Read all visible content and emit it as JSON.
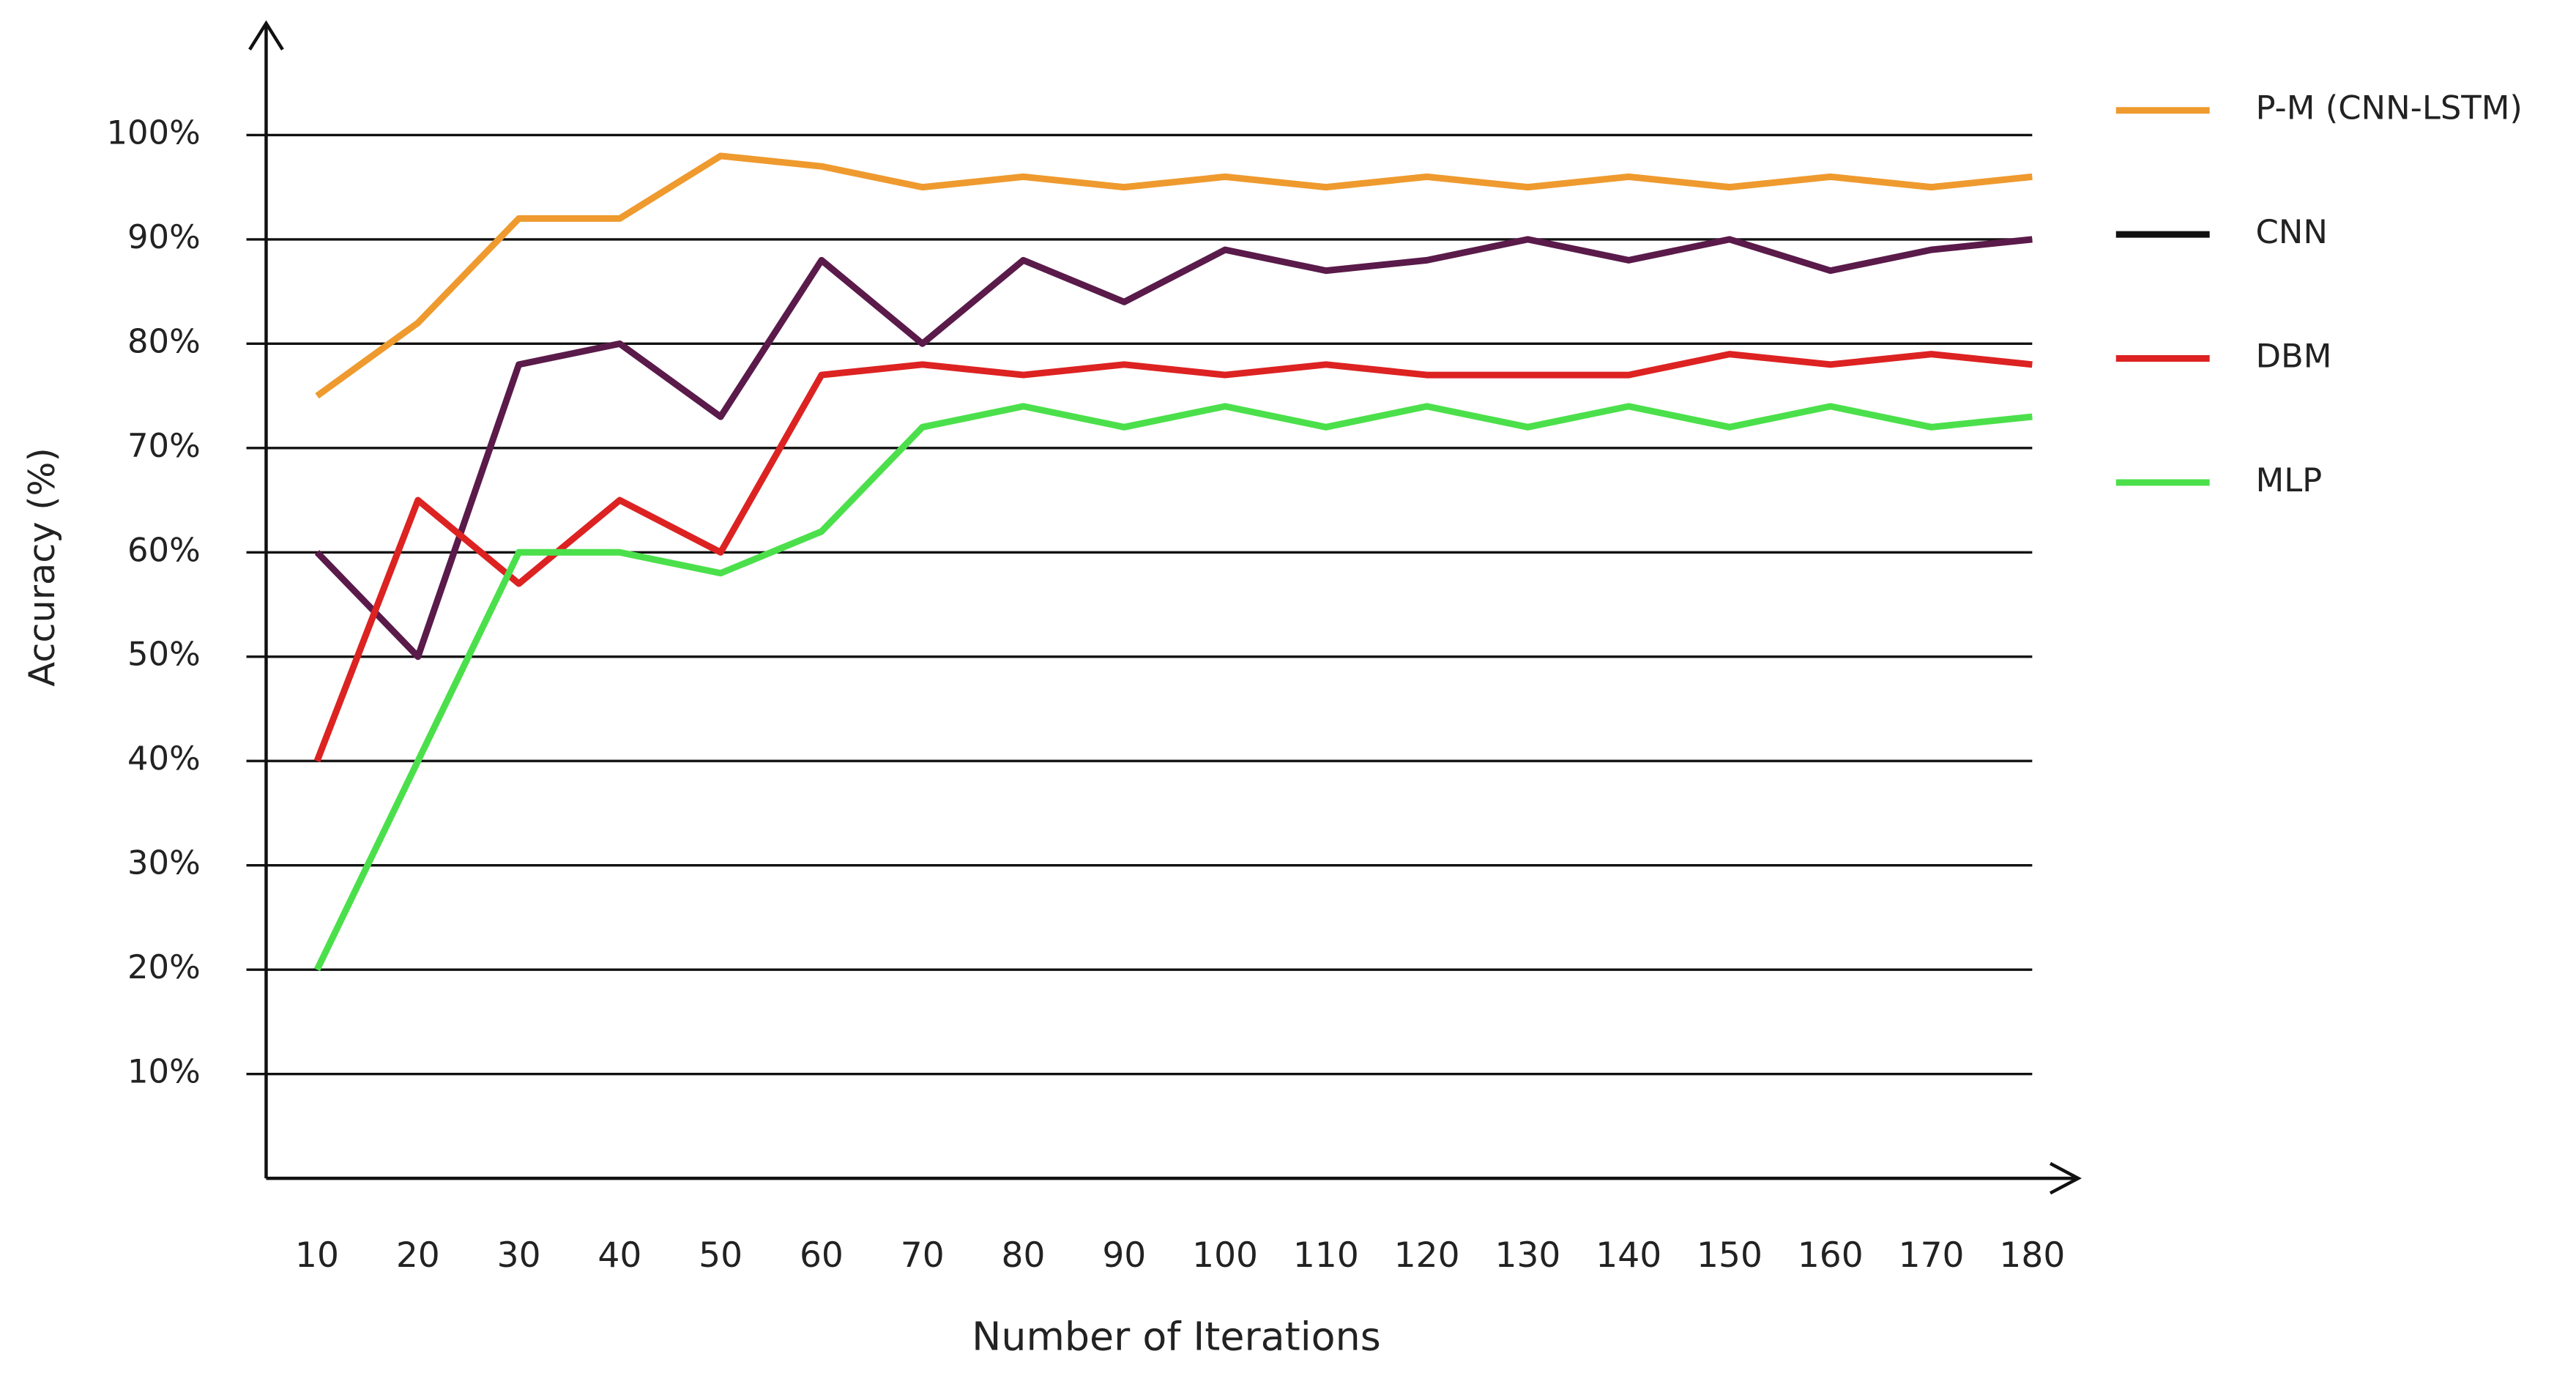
{
  "chart_data": {
    "type": "line",
    "y_label": "Accuracy (%)",
    "x_label": "Number of Iterations",
    "x": [
      10,
      20,
      30,
      40,
      50,
      60,
      70,
      80,
      90,
      100,
      110,
      120,
      130,
      140,
      150,
      160,
      170,
      180
    ],
    "xlim": [
      10,
      180
    ],
    "xticks": [
      10,
      20,
      30,
      40,
      50,
      60,
      70,
      80,
      90,
      100,
      110,
      120,
      130,
      140,
      150,
      160,
      170,
      180
    ],
    "ylim": [
      0,
      100
    ],
    "yticks": [
      {
        "value": 10,
        "label": "10%"
      },
      {
        "value": 20,
        "label": "20%"
      },
      {
        "value": 30,
        "label": "30%"
      },
      {
        "value": 40,
        "label": "40%"
      },
      {
        "value": 50,
        "label": "50%"
      },
      {
        "value": 60,
        "label": "60%"
      },
      {
        "value": 70,
        "label": "70%"
      },
      {
        "value": 80,
        "label": "80%"
      },
      {
        "value": 90,
        "label": "90%"
      },
      {
        "value": 100,
        "label": "100%"
      }
    ],
    "grid": true,
    "legend": "right",
    "series": [
      {
        "name": "P-M (CNN-LSTM)",
        "color": "#ef9a2e",
        "values": [
          75,
          82,
          92,
          92,
          98,
          97,
          95,
          96,
          95,
          96,
          95,
          96,
          95,
          96,
          95,
          96,
          95,
          96
        ]
      },
      {
        "name": "CNN",
        "color": "#5a1a4a",
        "legend_color": "#111111",
        "values": [
          60,
          50,
          78,
          80,
          73,
          88,
          80,
          88,
          84,
          89,
          87,
          88,
          90,
          88,
          90,
          87,
          89,
          90
        ]
      },
      {
        "name": "DBM",
        "color": "#dd2222",
        "values": [
          40,
          65,
          57,
          65,
          60,
          77,
          78,
          77,
          78,
          77,
          78,
          77,
          77,
          77,
          79,
          78,
          79,
          78
        ]
      },
      {
        "name": "MLP",
        "color": "#4be04b",
        "values": [
          20,
          40,
          60,
          60,
          58,
          62,
          72,
          74,
          72,
          74,
          72,
          74,
          72,
          74,
          72,
          74,
          72,
          73
        ]
      }
    ]
  }
}
